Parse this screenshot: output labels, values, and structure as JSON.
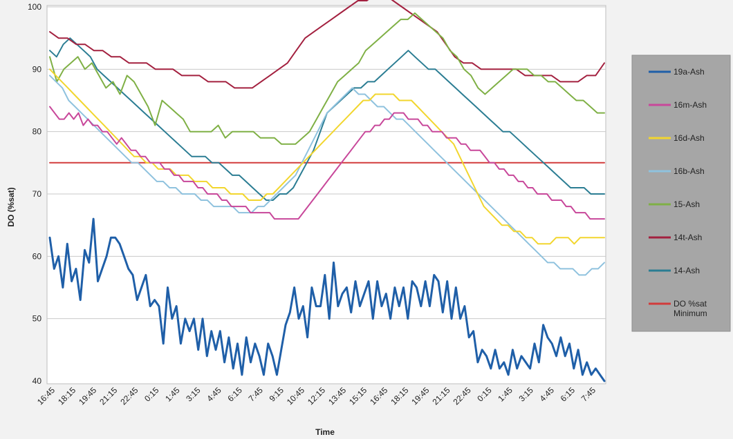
{
  "chart_data": {
    "type": "line",
    "xlabel": "Time",
    "ylabel": "DO (%sat)",
    "ylim": [
      40,
      100
    ],
    "yticks": [
      40,
      50,
      60,
      70,
      80,
      90,
      100
    ],
    "x_tick_labels": [
      "16:45",
      "18:15",
      "19:45",
      "21:15",
      "22:45",
      "0:15",
      "1:45",
      "3:15",
      "4:45",
      "6:15",
      "7:45",
      "9:15",
      "10:45",
      "12:15",
      "13:45",
      "15:15",
      "16:45",
      "18:15",
      "19:45",
      "21:15",
      "22:45",
      "0:15",
      "1:45",
      "3:15",
      "4:45",
      "6:15",
      "7:45"
    ],
    "grid": true,
    "legend_position": "right",
    "series": [
      {
        "name": "19a-Ash",
        "color": "#1f5fa8",
        "values": [
          63,
          58,
          60,
          55,
          62,
          56,
          58,
          53,
          61,
          59,
          66,
          56,
          58,
          60,
          63,
          63,
          62,
          60,
          58,
          57,
          53,
          55,
          57,
          52,
          53,
          52,
          46,
          55,
          50,
          52,
          46,
          50,
          48,
          50,
          45,
          50,
          44,
          48,
          45,
          48,
          43,
          47,
          42,
          46,
          41,
          47,
          43,
          46,
          44,
          41,
          46,
          44,
          41,
          45,
          49,
          51,
          55,
          50,
          52,
          47,
          55,
          52,
          52,
          57,
          50,
          59,
          52,
          54,
          55,
          51,
          56,
          52,
          54,
          56,
          50,
          56,
          52,
          54,
          50,
          55,
          52,
          55,
          50,
          56,
          55,
          52,
          56,
          52,
          57,
          56,
          51,
          56,
          50,
          55,
          50,
          52,
          47,
          48,
          43,
          45,
          44,
          42,
          45,
          42,
          43,
          41,
          45,
          42,
          44,
          43,
          42,
          46,
          43,
          49,
          47,
          46,
          44,
          47,
          44,
          46,
          42,
          45,
          41,
          43,
          41,
          42,
          41,
          40
        ]
      },
      {
        "name": "16m-Ash",
        "color": "#c8479a",
        "values": [
          84,
          83,
          82,
          82,
          83,
          82,
          83,
          81,
          82,
          81,
          81,
          80,
          80,
          79,
          78,
          79,
          78,
          77,
          77,
          76,
          76,
          75,
          75,
          75,
          74,
          74,
          73,
          73,
          72,
          72,
          72,
          71,
          71,
          70,
          70,
          70,
          69,
          69,
          68,
          68,
          68,
          68,
          67,
          67,
          67,
          67,
          67,
          66,
          66,
          66,
          66,
          66,
          66,
          67,
          68,
          69,
          70,
          71,
          72,
          73,
          74,
          75,
          76,
          77,
          78,
          79,
          80,
          80,
          81,
          81,
          82,
          82,
          83,
          83,
          83,
          82,
          82,
          82,
          81,
          81,
          80,
          80,
          80,
          79,
          79,
          79,
          78,
          78,
          77,
          77,
          77,
          76,
          75,
          75,
          74,
          74,
          73,
          73,
          72,
          72,
          71,
          71,
          70,
          70,
          70,
          69,
          69,
          69,
          68,
          68,
          67,
          67,
          67,
          66,
          66,
          66,
          66
        ]
      },
      {
        "name": "16d-Ash",
        "color": "#f2d62e",
        "values": [
          90,
          89,
          88,
          87,
          86,
          85,
          84,
          83,
          82,
          81,
          80,
          79,
          78,
          77,
          76,
          76,
          75,
          75,
          74,
          74,
          74,
          73,
          73,
          73,
          72,
          72,
          72,
          71,
          71,
          71,
          70,
          70,
          70,
          69,
          69,
          69,
          70,
          70,
          71,
          72,
          73,
          74,
          75,
          76,
          77,
          78,
          79,
          80,
          81,
          82,
          83,
          84,
          85,
          85,
          86,
          86,
          86,
          86,
          85,
          85,
          85,
          84,
          83,
          82,
          81,
          80,
          79,
          78,
          76,
          74,
          72,
          70,
          68,
          67,
          66,
          65,
          65,
          64,
          64,
          63,
          63,
          62,
          62,
          62,
          63,
          63,
          63,
          62,
          63,
          63,
          63,
          63,
          63
        ]
      },
      {
        "name": "16b-Ash",
        "color": "#8fc2de",
        "values": [
          89,
          88,
          87,
          85,
          84,
          83,
          82,
          81,
          80,
          79,
          78,
          77,
          76,
          75,
          75,
          74,
          73,
          72,
          72,
          71,
          71,
          70,
          70,
          70,
          69,
          69,
          68,
          68,
          68,
          68,
          67,
          67,
          67,
          68,
          68,
          69,
          70,
          71,
          72,
          73,
          75,
          77,
          79,
          81,
          83,
          84,
          85,
          86,
          87,
          86,
          86,
          85,
          84,
          84,
          83,
          82,
          82,
          81,
          80,
          79,
          78,
          77,
          76,
          75,
          74,
          73,
          72,
          71,
          70,
          69,
          68,
          67,
          66,
          65,
          64,
          63,
          62,
          61,
          60,
          59,
          59,
          58,
          58,
          58,
          57,
          57,
          58,
          58,
          59
        ]
      },
      {
        "name": "15-Ash",
        "color": "#7fb045",
        "values": [
          92,
          88,
          90,
          91,
          92,
          90,
          91,
          89,
          87,
          88,
          86,
          89,
          88,
          86,
          84,
          81,
          85,
          84,
          83,
          82,
          80,
          80,
          80,
          80,
          81,
          79,
          80,
          80,
          80,
          80,
          79,
          79,
          79,
          78,
          78,
          78,
          79,
          80,
          82,
          84,
          86,
          88,
          89,
          90,
          91,
          93,
          94,
          95,
          96,
          97,
          98,
          98,
          99,
          98,
          97,
          96,
          95,
          93,
          92,
          90,
          89,
          87,
          86,
          87,
          88,
          89,
          90,
          90,
          90,
          89,
          89,
          88,
          88,
          87,
          86,
          85,
          85,
          84,
          83,
          83
        ]
      },
      {
        "name": "14t-Ash",
        "color": "#a3203f",
        "values": [
          96,
          95,
          95,
          94,
          94,
          93,
          93,
          92,
          92,
          91,
          91,
          91,
          90,
          90,
          90,
          89,
          89,
          89,
          88,
          88,
          88,
          87,
          87,
          87,
          88,
          89,
          90,
          91,
          93,
          95,
          96,
          97,
          98,
          99,
          100,
          101,
          101,
          102,
          102,
          101,
          100,
          99,
          98,
          97,
          96,
          94,
          92,
          91,
          91,
          90,
          90,
          90,
          90,
          90,
          89,
          89,
          89,
          89,
          88,
          88,
          88,
          89,
          89,
          91
        ]
      },
      {
        "name": "14-Ash",
        "color": "#2b7d93",
        "values": [
          93,
          92,
          94,
          95,
          94,
          93,
          92,
          90,
          89,
          88,
          87,
          86,
          85,
          84,
          83,
          82,
          81,
          80,
          79,
          78,
          77,
          76,
          76,
          76,
          75,
          75,
          74,
          73,
          73,
          72,
          71,
          70,
          69,
          69,
          70,
          70,
          71,
          73,
          75,
          77,
          80,
          83,
          84,
          85,
          86,
          87,
          87,
          88,
          88,
          89,
          90,
          91,
          92,
          93,
          92,
          91,
          90,
          90,
          89,
          88,
          87,
          86,
          85,
          84,
          83,
          82,
          81,
          80,
          80,
          79,
          78,
          77,
          76,
          75,
          74,
          73,
          72,
          71,
          71,
          71,
          70,
          70,
          70
        ]
      },
      {
        "name": "DO %sat Minimum",
        "color": "#d23b3b",
        "values": [
          75,
          75
        ]
      }
    ]
  }
}
